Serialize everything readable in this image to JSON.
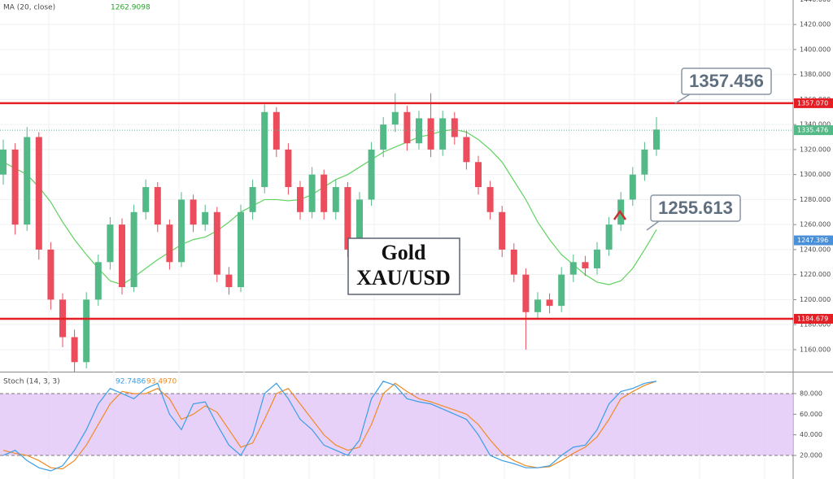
{
  "chart_data": [
    {
      "type": "candlestick",
      "title": "MA (20, close)",
      "title_value": 1262.9098,
      "up_color": "#53b987",
      "down_color": "#eb4d5c",
      "open": [
        1300,
        1320,
        1260,
        1330,
        1240,
        1200,
        1170,
        1150,
        1200,
        1230,
        1260,
        1210,
        1270,
        1290,
        1260,
        1230,
        1280,
        1260,
        1270,
        1220,
        1210,
        1270,
        1290,
        1350,
        1320,
        1290,
        1270,
        1300,
        1270,
        1290,
        1240,
        1280,
        1320,
        1340,
        1350,
        1325,
        1345,
        1320,
        1345,
        1330,
        1310,
        1290,
        1270,
        1240,
        1220,
        1190,
        1200,
        1195,
        1220,
        1230,
        1225,
        1240,
        1260,
        1280,
        1300,
        1320
      ],
      "high": [
        1328,
        1325,
        1338,
        1334,
        1246,
        1205,
        1176,
        1206,
        1236,
        1266,
        1265,
        1276,
        1296,
        1294,
        1264,
        1286,
        1284,
        1276,
        1274,
        1226,
        1276,
        1296,
        1356,
        1354,
        1325,
        1295,
        1306,
        1304,
        1296,
        1294,
        1286,
        1326,
        1346,
        1365,
        1355,
        1351,
        1365,
        1351,
        1350,
        1335,
        1315,
        1295,
        1275,
        1245,
        1225,
        1206,
        1205,
        1226,
        1236,
        1235,
        1246,
        1266,
        1286,
        1306,
        1326,
        1346
      ],
      "low": [
        1292,
        1252,
        1255,
        1232,
        1192,
        1162,
        1142,
        1145,
        1195,
        1224,
        1204,
        1206,
        1264,
        1254,
        1224,
        1226,
        1254,
        1255,
        1214,
        1204,
        1206,
        1264,
        1285,
        1314,
        1284,
        1264,
        1265,
        1264,
        1264,
        1234,
        1236,
        1275,
        1314,
        1334,
        1319,
        1320,
        1314,
        1315,
        1324,
        1304,
        1284,
        1264,
        1234,
        1214,
        1160,
        1184,
        1189,
        1190,
        1214,
        1219,
        1220,
        1235,
        1255,
        1275,
        1295,
        1315
      ],
      "close": [
        1320,
        1260,
        1330,
        1240,
        1200,
        1170,
        1150,
        1200,
        1230,
        1260,
        1210,
        1270,
        1290,
        1260,
        1230,
        1280,
        1260,
        1270,
        1220,
        1210,
        1270,
        1290,
        1350,
        1320,
        1290,
        1270,
        1300,
        1270,
        1290,
        1240,
        1280,
        1320,
        1340,
        1350,
        1325,
        1345,
        1320,
        1345,
        1330,
        1310,
        1290,
        1270,
        1240,
        1220,
        1190,
        1200,
        1195,
        1220,
        1230,
        1225,
        1240,
        1260,
        1280,
        1300,
        1320,
        1336
      ],
      "ma": {
        "color": "#5fd35f",
        "values": [
          1310,
          1305,
          1300,
          1290,
          1278,
          1262,
          1248,
          1236,
          1225,
          1215,
          1212,
          1218,
          1225,
          1232,
          1238,
          1244,
          1248,
          1250,
          1255,
          1262,
          1270,
          1275,
          1280,
          1280,
          1279,
          1280,
          1284,
          1290,
          1296,
          1300,
          1306,
          1312,
          1318,
          1322,
          1326,
          1330,
          1332,
          1335,
          1336,
          1334,
          1328,
          1320,
          1310,
          1295,
          1280,
          1262,
          1248,
          1236,
          1228,
          1220,
          1214,
          1212,
          1215,
          1225,
          1240,
          1256
        ]
      },
      "ylim": [
        1142.4,
        1439.6
      ],
      "yticks": [
        {
          "value": 1160,
          "label": "1160.000"
        },
        {
          "value": 1180,
          "label": "1180.000"
        },
        {
          "value": 1200,
          "label": "1200.000"
        },
        {
          "value": 1220,
          "label": "1220.000"
        },
        {
          "value": 1240,
          "label": "1240.000"
        },
        {
          "value": 1260,
          "label": "1260.000"
        },
        {
          "value": 1280,
          "label": "1280.000"
        },
        {
          "value": 1300,
          "label": "1300.000"
        },
        {
          "value": 1320,
          "label": "1320.000"
        },
        {
          "value": 1340,
          "label": "1340.000"
        },
        {
          "value": 1360,
          "label": "1360.000"
        },
        {
          "value": 1380,
          "label": "1380.000"
        },
        {
          "value": 1400,
          "label": "1400.000"
        },
        {
          "value": 1420,
          "label": "1420.000"
        },
        {
          "value": 1440,
          "label": "1440.000"
        }
      ],
      "grid": true,
      "hlines": [
        {
          "value": 1357.07,
          "label": "1357.070",
          "color": "#e31e24"
        },
        {
          "value": 1184.679,
          "label": "1184.679",
          "color": "#e31e24"
        }
      ],
      "last_price": {
        "value": 1335.476,
        "label": "1335.476",
        "color": "#53b987"
      },
      "ma_price": {
        "value": 1247.396,
        "label": "1247.396",
        "color": "#4a90d9"
      },
      "callouts": [
        1357.456,
        1255.613
      ],
      "annotation": [
        "Gold",
        "XAU/USD"
      ]
    },
    {
      "type": "stochastic",
      "title": "Stoch (14, 3, 3)",
      "k": {
        "color": "#3a9ee6",
        "last": 92.7486,
        "values": [
          20,
          25,
          15,
          8,
          5,
          10,
          25,
          45,
          70,
          85,
          80,
          75,
          85,
          90,
          60,
          45,
          70,
          72,
          50,
          30,
          20,
          40,
          80,
          90,
          75,
          55,
          45,
          30,
          25,
          20,
          35,
          75,
          92,
          88,
          75,
          72,
          70,
          65,
          60,
          55,
          40,
          20,
          15,
          12,
          8,
          8,
          10,
          20,
          28,
          30,
          45,
          70,
          82,
          85,
          90,
          92
        ]
      },
      "d": {
        "color": "#f08a24",
        "last": {
          "value": 93.497,
          "label": "93.4970"
        },
        "values": [
          25,
          22,
          20,
          15,
          8,
          7,
          15,
          30,
          50,
          70,
          82,
          80,
          80,
          85,
          75,
          55,
          60,
          68,
          62,
          45,
          28,
          32,
          55,
          80,
          85,
          70,
          55,
          40,
          30,
          25,
          28,
          50,
          80,
          90,
          82,
          75,
          72,
          68,
          64,
          60,
          50,
          35,
          22,
          15,
          10,
          8,
          9,
          15,
          22,
          28,
          38,
          55,
          75,
          82,
          88,
          92
        ]
      },
      "band": [
        20,
        80
      ],
      "band_color": "#e2c6f7",
      "ylim": [
        -2.9,
        100.5
      ],
      "yticks": [
        {
          "value": 20,
          "label": "20.000"
        },
        {
          "value": 40,
          "label": "40.000"
        },
        {
          "value": 60,
          "label": "60.000"
        },
        {
          "value": 80,
          "label": "80.000"
        }
      ]
    }
  ]
}
